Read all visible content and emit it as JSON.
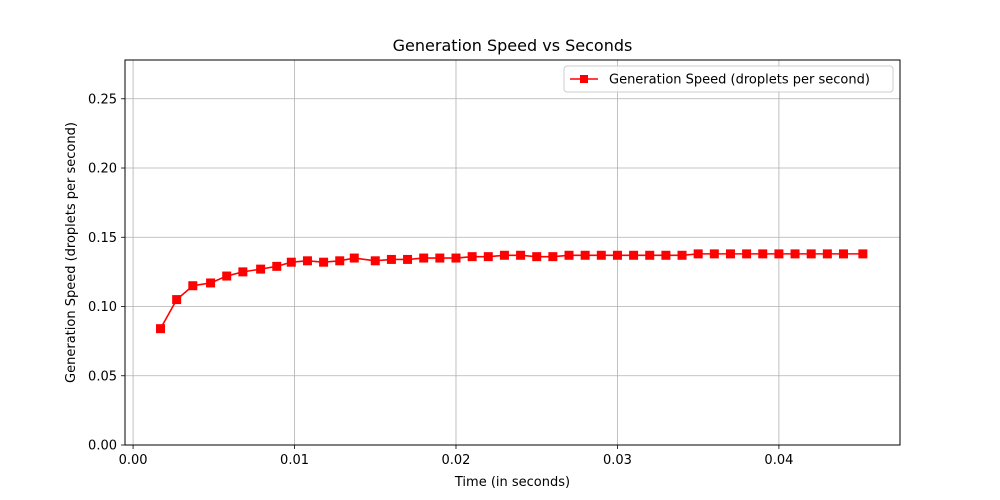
{
  "chart_data": {
    "type": "line",
    "title": "Generation Speed vs Seconds",
    "xlabel": "Time (in seconds)",
    "ylabel": "Generation Speed (droplets per second)",
    "xlim": [
      -0.0005,
      0.0475
    ],
    "ylim": [
      0.0,
      0.278
    ],
    "xticks": [
      0.0,
      0.01,
      0.02,
      0.03,
      0.04
    ],
    "xtick_labels": [
      "0.00",
      "0.01",
      "0.02",
      "0.03",
      "0.04"
    ],
    "yticks": [
      0.0,
      0.05,
      0.1,
      0.15,
      0.2,
      0.25
    ],
    "ytick_labels": [
      "0.00",
      "0.05",
      "0.10",
      "0.15",
      "0.20",
      "0.25"
    ],
    "grid": true,
    "legend_position": "upper-right",
    "series": [
      {
        "name": "Generation Speed (droplets per second)",
        "color": "#ff0000",
        "marker": "square",
        "x": [
          0.0017,
          0.0027,
          0.0037,
          0.0048,
          0.0058,
          0.0068,
          0.0079,
          0.0089,
          0.0098,
          0.0108,
          0.0118,
          0.0128,
          0.0137,
          0.015,
          0.016,
          0.017,
          0.018,
          0.019,
          0.02,
          0.021,
          0.022,
          0.023,
          0.024,
          0.025,
          0.026,
          0.027,
          0.028,
          0.029,
          0.03,
          0.031,
          0.032,
          0.033,
          0.034,
          0.035,
          0.036,
          0.037,
          0.038,
          0.039,
          0.04,
          0.041,
          0.042,
          0.043,
          0.044,
          0.0452
        ],
        "y": [
          0.084,
          0.105,
          0.115,
          0.117,
          0.122,
          0.125,
          0.127,
          0.129,
          0.132,
          0.133,
          0.132,
          0.133,
          0.135,
          0.133,
          0.134,
          0.134,
          0.135,
          0.135,
          0.135,
          0.136,
          0.136,
          0.137,
          0.137,
          0.136,
          0.136,
          0.137,
          0.137,
          0.137,
          0.137,
          0.137,
          0.137,
          0.137,
          0.137,
          0.138,
          0.138,
          0.138,
          0.138,
          0.138,
          0.138,
          0.138,
          0.138,
          0.138,
          0.138,
          0.138
        ]
      }
    ]
  }
}
